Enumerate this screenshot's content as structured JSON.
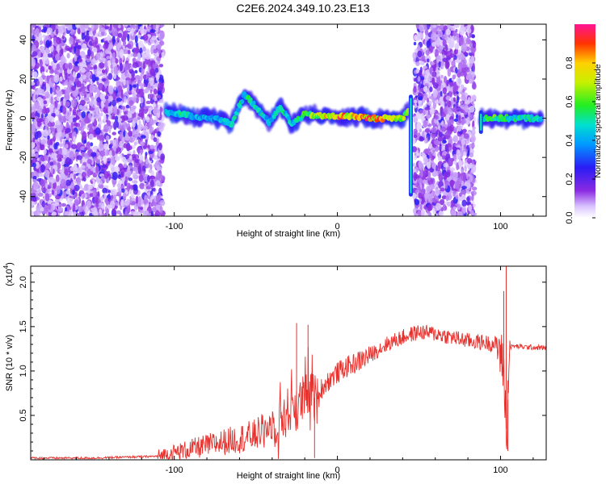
{
  "title": "C2E6.2024.349.10.23.E13",
  "colors": {
    "snr_line": "#e8302c",
    "background": "#ffffff",
    "axis": "#000000"
  },
  "chart_data": [
    {
      "type": "heatmap",
      "xlabel": "Height of straight line (km)",
      "ylabel": "Frequency (Hz)",
      "xlim": [
        -188,
        128
      ],
      "ylim": [
        -50,
        48
      ],
      "x_ticks": [
        -100,
        0,
        100
      ],
      "x_tick_labels": [
        "-100",
        "0",
        "100"
      ],
      "y_ticks": [
        -40,
        -20,
        0,
        20,
        40
      ],
      "y_tick_labels": [
        "-40",
        "-20",
        "0",
        "20",
        "40"
      ],
      "colorbar": {
        "label": "Normalized spectral amplitude",
        "range": [
          0.0,
          1.0
        ],
        "ticks": [
          0.0,
          0.2,
          0.4,
          0.6,
          0.8
        ],
        "tick_labels": [
          "0.0",
          "0.2",
          "0.4",
          "0.6",
          "0.8"
        ],
        "colormap": "rainbow"
      },
      "noise_regions": [
        {
          "x_range": [
            -188,
            -107
          ],
          "y_range": [
            -50,
            48
          ]
        },
        {
          "x_range": [
            47,
            84
          ],
          "y_range": [
            -50,
            48
          ]
        }
      ],
      "signal_track": [
        {
          "x": -105,
          "y": 3,
          "amp": 0.45
        },
        {
          "x": -95,
          "y": 2,
          "amp": 0.5
        },
        {
          "x": -85,
          "y": 0,
          "amp": 0.45
        },
        {
          "x": -75,
          "y": 0,
          "amp": 0.4
        },
        {
          "x": -65,
          "y": -3,
          "amp": 0.45
        },
        {
          "x": -57,
          "y": 12,
          "amp": 0.5
        },
        {
          "x": -50,
          "y": 6,
          "amp": 0.5
        },
        {
          "x": -42,
          "y": -2,
          "amp": 0.45
        },
        {
          "x": -35,
          "y": 6,
          "amp": 0.5
        },
        {
          "x": -28,
          "y": -3,
          "amp": 0.45
        },
        {
          "x": -20,
          "y": 2,
          "amp": 0.6
        },
        {
          "x": -10,
          "y": 1,
          "amp": 0.7
        },
        {
          "x": 0,
          "y": 1,
          "amp": 0.85
        },
        {
          "x": 10,
          "y": 1,
          "amp": 0.8
        },
        {
          "x": 20,
          "y": 0,
          "amp": 0.85
        },
        {
          "x": 30,
          "y": 0,
          "amp": 0.8
        },
        {
          "x": 40,
          "y": 0,
          "amp": 0.75
        },
        {
          "x": 44,
          "y": 5,
          "amp": 0.6
        },
        {
          "x": 88,
          "y": 0,
          "amp": 0.55
        },
        {
          "x": 95,
          "y": 0,
          "amp": 0.6
        },
        {
          "x": 105,
          "y": 0,
          "amp": 0.5
        },
        {
          "x": 115,
          "y": 0,
          "amp": 0.5
        },
        {
          "x": 125,
          "y": 0,
          "amp": 0.5
        }
      ]
    },
    {
      "type": "line",
      "xlabel": "Height of straight line (km)",
      "ylabel": "SNR (10 * v/v)",
      "multiplier_label": "(x10",
      "multiplier_exp": "4",
      "xlim": [
        -188,
        128
      ],
      "ylim": [
        0,
        2.18
      ],
      "x_ticks": [
        -100,
        0,
        100
      ],
      "x_tick_labels": [
        "-100",
        "0",
        "100"
      ],
      "y_ticks": [
        0.5,
        1.0,
        1.5,
        2.0
      ],
      "y_tick_labels": [
        "0.5",
        "1.0",
        "1.5",
        "2.0"
      ],
      "series": [
        {
          "x": [
            -188,
            -170,
            -150,
            -130,
            -110,
            -100,
            -90,
            -80,
            -70,
            -60,
            -50,
            -45,
            -40,
            -35,
            -30,
            -25,
            -20,
            -17,
            -15,
            -12,
            -10,
            -5,
            0,
            5,
            10,
            20,
            30,
            40,
            50,
            60,
            70,
            80,
            90,
            98,
            100,
            102,
            103,
            104,
            105,
            108,
            115,
            128
          ],
          "y": [
            0.02,
            0.02,
            0.02,
            0.03,
            0.04,
            0.08,
            0.12,
            0.16,
            0.2,
            0.24,
            0.28,
            0.35,
            0.38,
            0.45,
            0.55,
            0.6,
            0.7,
            0.75,
            0.72,
            0.65,
            0.8,
            0.9,
            0.98,
            1.04,
            1.08,
            1.18,
            1.3,
            1.38,
            1.44,
            1.42,
            1.38,
            1.34,
            1.32,
            1.3,
            1.2,
            1.0,
            0.6,
            0.1,
            1.26,
            1.28,
            1.27,
            1.26
          ],
          "peaks": [
            {
              "x": -25,
              "y": 1.54
            },
            {
              "x": -18,
              "y": 1.52
            },
            {
              "x": -14,
              "y": 0.02
            },
            {
              "x": 102,
              "y": 1.9
            },
            {
              "x": 103.5,
              "y": 2.18
            },
            {
              "x": 104.5,
              "y": 0.1
            }
          ]
        }
      ]
    }
  ]
}
